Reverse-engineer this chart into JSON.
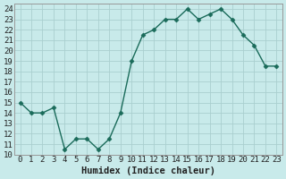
{
  "x": [
    0,
    1,
    2,
    3,
    4,
    5,
    6,
    7,
    8,
    9,
    10,
    11,
    12,
    13,
    14,
    15,
    16,
    17,
    18,
    19,
    20,
    21,
    22,
    23
  ],
  "y": [
    15.0,
    14.0,
    14.0,
    14.5,
    10.5,
    11.5,
    11.5,
    10.5,
    11.5,
    14.0,
    19.0,
    21.5,
    22.0,
    23.0,
    23.0,
    24.0,
    23.0,
    23.5,
    24.0,
    23.0,
    21.5,
    20.5,
    18.5,
    18.5
  ],
  "line_color": "#1a6b5a",
  "bg_color": "#c8eaea",
  "grid_color": "#aacfcf",
  "xlabel": "Humidex (Indice chaleur)",
  "xlim": [
    -0.5,
    23.5
  ],
  "ylim": [
    10,
    24.5
  ],
  "yticks": [
    10,
    11,
    12,
    13,
    14,
    15,
    16,
    17,
    18,
    19,
    20,
    21,
    22,
    23,
    24
  ],
  "xticks": [
    0,
    1,
    2,
    3,
    4,
    5,
    6,
    7,
    8,
    9,
    10,
    11,
    12,
    13,
    14,
    15,
    16,
    17,
    18,
    19,
    20,
    21,
    22,
    23
  ],
  "marker_size": 2.5,
  "line_width": 1.0,
  "tick_fontsize": 6.5,
  "xlabel_fontsize": 7.5
}
